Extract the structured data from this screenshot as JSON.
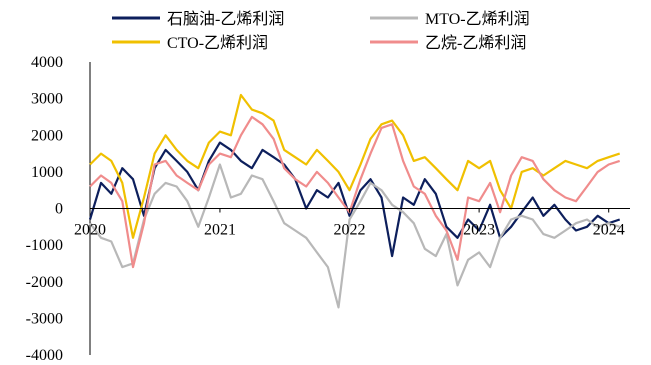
{
  "chart_data": {
    "type": "line",
    "ylim": [
      -4000,
      4000
    ],
    "y_ticks": [
      "4000",
      "3000",
      "2000",
      "1000",
      "0",
      "-1000",
      "-2000",
      "-3000",
      "-4000"
    ],
    "x_ticks": [
      "2020",
      "2021",
      "2022",
      "2023",
      "2024"
    ],
    "legend_placement": "top",
    "grid": false,
    "x": [
      "2020-01-01",
      "2020-02-01",
      "2020-03-01",
      "2020-04-01",
      "2020-05-01",
      "2020-06-01",
      "2020-07-01",
      "2020-08-01",
      "2020-09-01",
      "2020-10-01",
      "2020-11-01",
      "2020-12-01",
      "2021-01-01",
      "2021-02-01",
      "2021-03-01",
      "2021-04-01",
      "2021-05-01",
      "2021-06-01",
      "2021-07-01",
      "2021-08-01",
      "2021-09-01",
      "2021-10-01",
      "2021-11-01",
      "2021-12-01",
      "2022-01-01",
      "2022-02-01",
      "2022-03-01",
      "2022-04-01",
      "2022-05-01",
      "2022-06-01",
      "2022-07-01",
      "2022-08-01",
      "2022-09-01",
      "2022-10-01",
      "2022-11-01",
      "2022-12-01",
      "2023-01-01",
      "2023-02-01",
      "2023-03-01",
      "2023-04-01",
      "2023-05-01",
      "2023-06-01",
      "2023-07-01",
      "2023-08-01",
      "2023-09-01",
      "2023-10-01",
      "2023-11-01",
      "2023-12-01",
      "2024-01-01",
      "2024-02-01"
    ],
    "series": [
      {
        "name": "石脑油-乙烯利润",
        "color": "#0d1f5c",
        "values": [
          -300,
          700,
          400,
          1100,
          800,
          -200,
          1100,
          1600,
          1300,
          1000,
          500,
          1300,
          1800,
          1600,
          1300,
          1100,
          1600,
          1400,
          1200,
          800,
          0,
          500,
          300,
          700,
          -200,
          500,
          800,
          300,
          -1300,
          300,
          100,
          800,
          400,
          -500,
          -800,
          -300,
          -600,
          100,
          -800,
          -500,
          -100,
          300,
          -200,
          100,
          -300,
          -600,
          -500,
          -200,
          -400,
          -300
        ]
      },
      {
        "name": "MTO-乙烯利润",
        "color": "#b8b8b8",
        "values": [
          -400,
          -800,
          -900,
          -1600,
          -1500,
          -300,
          400,
          700,
          600,
          200,
          -500,
          300,
          1200,
          300,
          400,
          900,
          800,
          200,
          -400,
          -600,
          -800,
          -1200,
          -1600,
          -2700,
          -300,
          200,
          700,
          500,
          100,
          -100,
          -400,
          -1100,
          -1300,
          -700,
          -2100,
          -1400,
          -1200,
          -1600,
          -800,
          -300,
          -200,
          -300,
          -700,
          -800,
          -600,
          -400,
          -300,
          -500,
          -400,
          -500
        ]
      },
      {
        "name": "CTO-乙烯利润",
        "color": "#f0c000",
        "values": [
          1200,
          1500,
          1300,
          700,
          -800,
          300,
          1500,
          2000,
          1600,
          1300,
          1100,
          1800,
          2100,
          2000,
          3100,
          2700,
          2600,
          2400,
          1600,
          1400,
          1200,
          1600,
          1300,
          1000,
          500,
          1200,
          1900,
          2300,
          2400,
          2000,
          1300,
          1400,
          1100,
          800,
          500,
          1300,
          1100,
          1300,
          500,
          0,
          1000,
          1100,
          900,
          1100,
          1300,
          1200,
          1100,
          1300,
          1400,
          1500
        ]
      },
      {
        "name": "乙烷-乙烯利润",
        "color": "#f08c8c",
        "values": [
          600,
          900,
          700,
          200,
          -1600,
          -400,
          1200,
          1300,
          900,
          700,
          500,
          1200,
          1500,
          1400,
          2000,
          2500,
          2300,
          1900,
          1100,
          800,
          600,
          1000,
          700,
          300,
          -100,
          800,
          1500,
          2200,
          2300,
          1300,
          600,
          400,
          -200,
          -600,
          -1400,
          300,
          200,
          700,
          -100,
          900,
          1400,
          1300,
          800,
          500,
          300,
          200,
          600,
          1000,
          1200,
          1300
        ]
      }
    ]
  }
}
